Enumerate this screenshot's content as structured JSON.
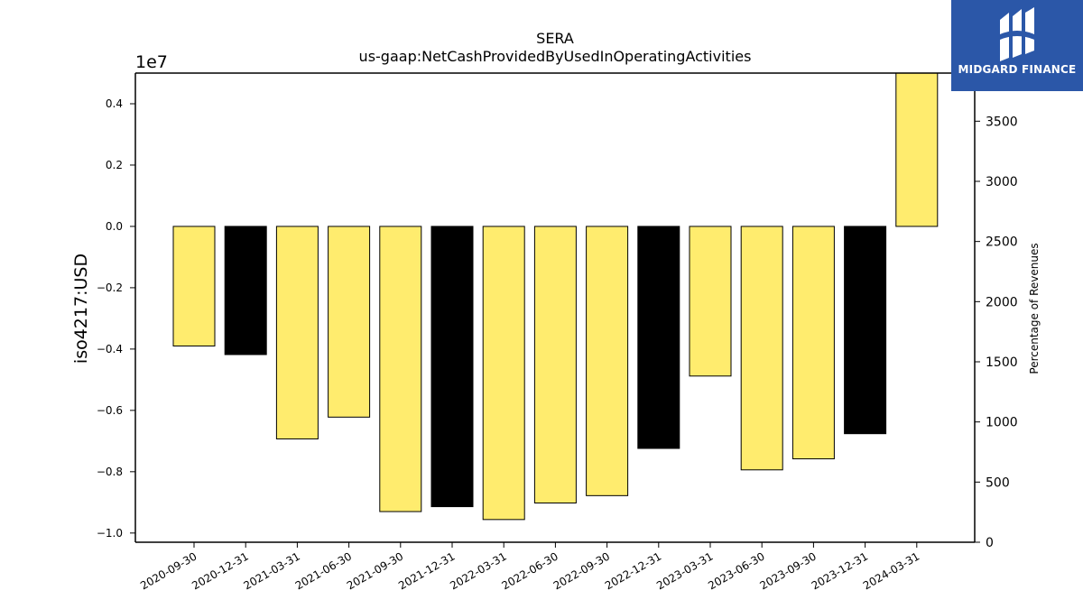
{
  "chart_data": {
    "type": "bar",
    "title": "SERA",
    "subtitle": "us-gaap:NetCashProvidedByUsedInOperatingActivities",
    "ylabel": "iso4217:USD",
    "ylabel_right": "Percentage of Revenues",
    "y_offset_label": "1e7",
    "ylim": [
      -10300000,
      5000000
    ],
    "y_ticks": [
      -1.0,
      -0.8,
      -0.6,
      -0.4,
      -0.2,
      0.0,
      0.2,
      0.4
    ],
    "y_ticks_display": [
      "−1.0",
      "−0.8",
      "−0.6",
      "−0.4",
      "−0.2",
      "0.0",
      "0.2",
      "0.4"
    ],
    "y2lim": [
      0,
      3900
    ],
    "y2_ticks": [
      0,
      500,
      1000,
      1500,
      2000,
      2500,
      3000,
      3500
    ],
    "categories": [
      "2020-09-30",
      "2020-12-31",
      "2021-03-31",
      "2021-06-30",
      "2021-09-30",
      "2021-12-31",
      "2022-03-31",
      "2022-06-30",
      "2022-09-30",
      "2022-12-31",
      "2023-03-31",
      "2023-06-30",
      "2023-09-30",
      "2023-12-31",
      "2024-03-31"
    ],
    "values": [
      -3900000,
      -4180000,
      -6930000,
      -6220000,
      -9300000,
      -9140000,
      -9560000,
      -9020000,
      -8780000,
      -7240000,
      -4880000,
      -7940000,
      -7580000,
      -6760000,
      5000000
    ],
    "bar_colors": [
      "#ffec6e",
      "#000000",
      "#ffec6e",
      "#ffec6e",
      "#ffec6e",
      "#000000",
      "#ffec6e",
      "#ffec6e",
      "#ffec6e",
      "#000000",
      "#ffec6e",
      "#ffec6e",
      "#ffec6e",
      "#000000",
      "#ffec6e"
    ],
    "grid": false,
    "legend": "none"
  },
  "logo": {
    "text": "MIDGARD FINANCE",
    "color": "#2b57a8"
  }
}
